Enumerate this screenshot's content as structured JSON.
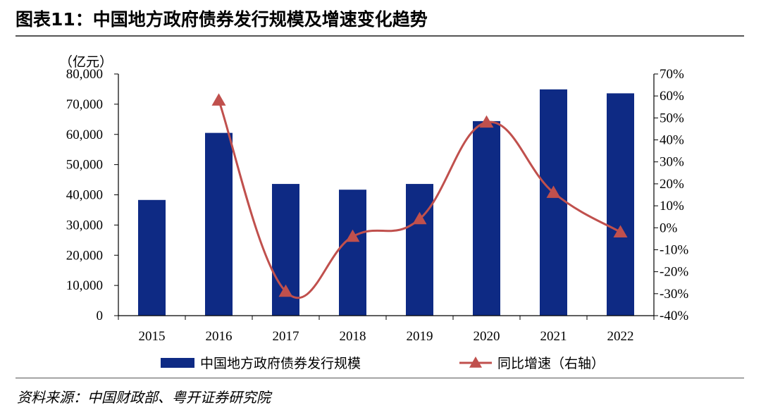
{
  "figure": {
    "title": "图表11：中国地方政府债券发行规模及增速变化趋势",
    "source": "资料来源：中国财政部、粤开证券研究院"
  },
  "colors": {
    "bar": "#0e2a84",
    "line": "#c0504d"
  },
  "chart_data": {
    "type": "bar",
    "categories": [
      "2015",
      "2016",
      "2017",
      "2018",
      "2019",
      "2020",
      "2021",
      "2022"
    ],
    "series": [
      {
        "name": "中国地方政府债券发行规模",
        "type": "bar",
        "axis": "left",
        "values": [
          38300,
          60500,
          43600,
          41700,
          43600,
          64400,
          74900,
          73600
        ]
      },
      {
        "name": "同比增速（右轴）",
        "type": "line",
        "axis": "right",
        "marker": "triangle",
        "values": [
          null,
          58,
          -29,
          -4,
          4,
          48,
          16,
          -2
        ]
      }
    ],
    "left_axis": {
      "unit_label": "（亿元）",
      "ylim": [
        0,
        80000
      ],
      "ticks": [
        "0",
        "10,000",
        "20,000",
        "30,000",
        "40,000",
        "50,000",
        "60,000",
        "70,000",
        "80,000"
      ]
    },
    "right_axis": {
      "ylim": [
        -40,
        70
      ],
      "ticks": [
        "-40%",
        "-30%",
        "-20%",
        "-10%",
        "0%",
        "10%",
        "20%",
        "30%",
        "40%",
        "50%",
        "60%",
        "70%"
      ]
    },
    "grid": false,
    "legend_position": "bottom"
  }
}
